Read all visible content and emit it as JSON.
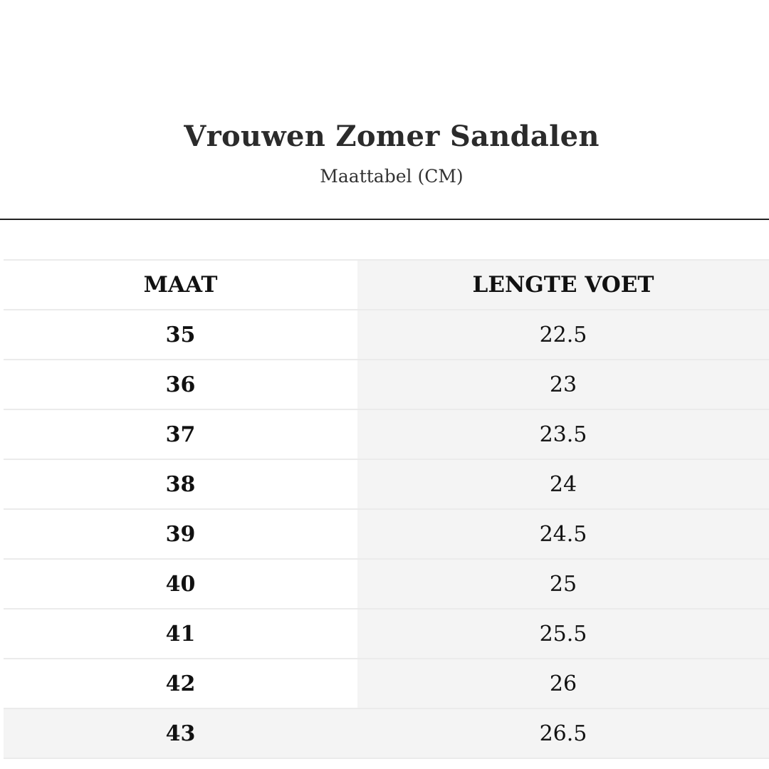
{
  "title": "Vrouwen Zomer Sandalen",
  "subtitle": "Maattabel (CM)",
  "table": {
    "headers": [
      "MAAT",
      "LENGTE VOET"
    ],
    "rows": [
      [
        "35",
        "22.5"
      ],
      [
        "36",
        "23"
      ],
      [
        "37",
        "23.5"
      ],
      [
        "38",
        "24"
      ],
      [
        "39",
        "24.5"
      ],
      [
        "40",
        "25"
      ],
      [
        "41",
        "25.5"
      ],
      [
        "42",
        "26"
      ],
      [
        "43",
        "26.5"
      ]
    ]
  }
}
